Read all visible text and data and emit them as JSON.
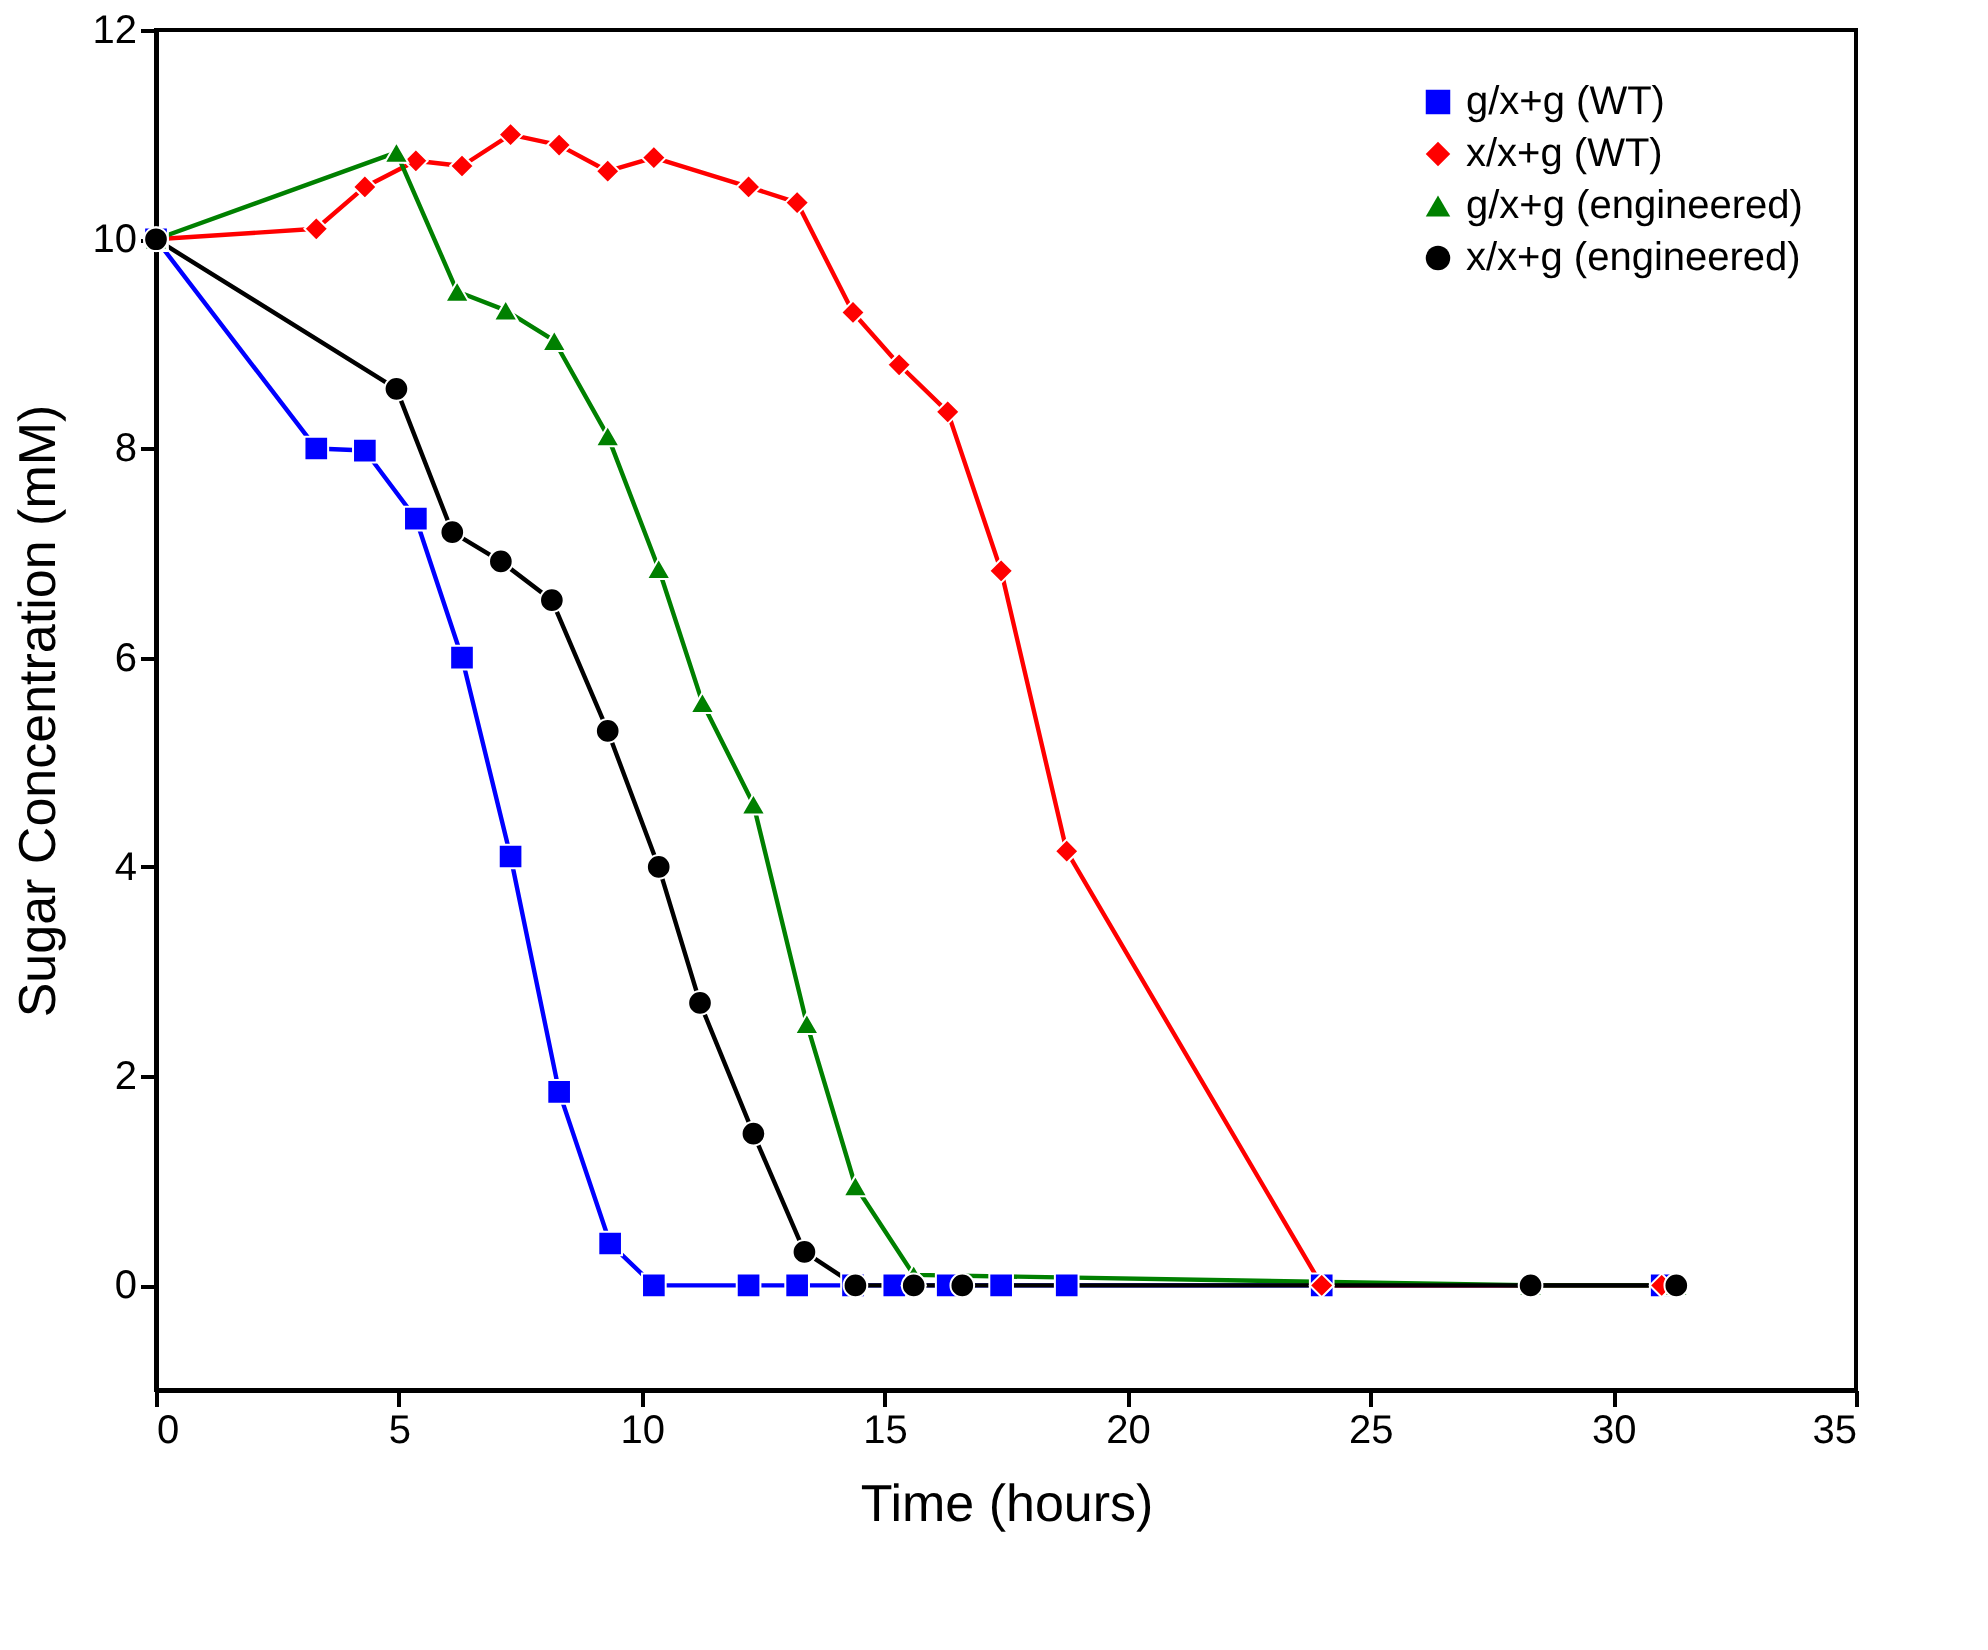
{
  "chart_data": {
    "type": "line",
    "xlabel": "Time (hours)",
    "ylabel": "Sugar Concentration (mM)",
    "xlim": [
      0,
      35
    ],
    "xticks": [
      0,
      5,
      10,
      15,
      20,
      25,
      30,
      35
    ],
    "ylim": [
      -1,
      12
    ],
    "yticks": [
      0,
      2,
      4,
      6,
      8,
      10,
      12
    ],
    "grid": false,
    "legend": "top right",
    "line_style": "solid",
    "series": [
      {
        "name": "g/x+g (WT)",
        "color": "#0000ff",
        "marker": "square",
        "x": [
          0,
          3.3,
          4.3,
          5.35,
          6.3,
          7.3,
          8.3,
          9.35,
          10.25,
          12.2,
          13.2,
          14.35,
          15.2,
          16.3,
          17.4,
          18.75,
          24,
          31
        ],
        "values": [
          10,
          8.0,
          7.98,
          7.33,
          6.0,
          4.1,
          1.85,
          0.4,
          0,
          0,
          0,
          0,
          0,
          0,
          0,
          0,
          0,
          0
        ]
      },
      {
        "name": "x/x+g (WT)",
        "color": "#ff0000",
        "marker": "diamond",
        "x": [
          0,
          3.3,
          4.3,
          5.35,
          6.3,
          7.3,
          8.3,
          9.3,
          10.25,
          12.2,
          13.2,
          14.35,
          15.3,
          16.3,
          17.4,
          18.75,
          24,
          31
        ],
        "values": [
          10,
          10.1,
          10.5,
          10.75,
          10.7,
          11.0,
          10.9,
          10.65,
          10.78,
          10.5,
          10.35,
          9.3,
          8.8,
          8.35,
          6.83,
          4.15,
          0,
          0
        ]
      },
      {
        "name": "g/x+g (engineered)",
        "color": "#008000",
        "marker": "triangle",
        "x": [
          0,
          4.95,
          6.2,
          7.2,
          8.2,
          9.3,
          10.35,
          11.25,
          12.3,
          13.4,
          14.4,
          15.6,
          28.3,
          31.3
        ],
        "values": [
          10,
          10.83,
          9.5,
          9.32,
          9.03,
          8.12,
          6.85,
          5.57,
          4.6,
          2.5,
          0.95,
          0.1,
          0,
          0
        ]
      },
      {
        "name": "x/x+g (engineered)",
        "color": "#000000",
        "marker": "circle",
        "x": [
          0,
          4.95,
          6.1,
          7.1,
          8.15,
          9.3,
          10.35,
          11.2,
          12.3,
          13.35,
          14.4,
          15.6,
          16.6,
          28.3,
          31.3
        ],
        "values": [
          10,
          8.57,
          7.2,
          6.92,
          6.55,
          5.3,
          4.0,
          2.7,
          1.45,
          0.32,
          0,
          0,
          0,
          0,
          0
        ]
      }
    ]
  }
}
